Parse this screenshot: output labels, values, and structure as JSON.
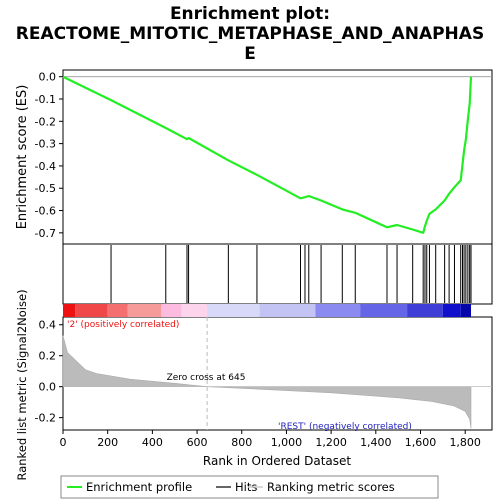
{
  "chart_data": {
    "type": "line",
    "title_line1": "Enrichment plot:",
    "title_line2": "REACTOME_MITOTIC_METAPHASE_AND_ANAPHAS",
    "title_line3": "E",
    "ylabel_top": "Enrichment score (ES)",
    "ylabel_bottom": "Ranked list metric (Signal2Noise)",
    "xlabel": "Rank in Ordered Dataset",
    "x_ticks": [
      0,
      200,
      400,
      600,
      800,
      1000,
      1200,
      1400,
      1600,
      1800
    ],
    "x_tick_labels": [
      "0",
      "200",
      "400",
      "600",
      "800",
      "1,000",
      "1,200",
      "1,400",
      "1,600",
      "1,800"
    ],
    "xlim": [
      0,
      1920
    ],
    "es_ylim": [
      -0.75,
      0.03
    ],
    "es_ticks": [
      0.0,
      -0.1,
      -0.2,
      -0.3,
      -0.4,
      -0.5,
      -0.6,
      -0.7
    ],
    "es_tick_labels": [
      "0.0",
      "-0.1",
      "-0.2",
      "-0.3",
      "-0.4",
      "-0.5",
      "-0.6",
      "-0.7"
    ],
    "metric_ylim": [
      -0.28,
      0.45
    ],
    "metric_ticks": [
      0.4,
      0.2,
      0.0,
      -0.2
    ],
    "metric_tick_labels": [
      "0.4",
      "0.2",
      "0.0",
      "-0.2"
    ],
    "zero_cross_label": "Zero cross at 645",
    "zero_cross_rank": 645,
    "pos_label": "'2' (positively correlated)",
    "neg_label": "'REST' (negatively correlated)",
    "hits": [
      215,
      460,
      555,
      562,
      740,
      868,
      1063,
      1083,
      1100,
      1155,
      1250,
      1308,
      1450,
      1495,
      1565,
      1612,
      1620,
      1628,
      1640,
      1668,
      1708,
      1728,
      1752,
      1780,
      1788,
      1795,
      1803,
      1812,
      1820,
      1826
    ],
    "es_points": [
      [
        0,
        0.0
      ],
      [
        215,
        -0.105
      ],
      [
        460,
        -0.23
      ],
      [
        555,
        -0.28
      ],
      [
        562,
        -0.275
      ],
      [
        740,
        -0.375
      ],
      [
        868,
        -0.44
      ],
      [
        1063,
        -0.545
      ],
      [
        1083,
        -0.54
      ],
      [
        1100,
        -0.535
      ],
      [
        1155,
        -0.555
      ],
      [
        1250,
        -0.595
      ],
      [
        1308,
        -0.61
      ],
      [
        1450,
        -0.675
      ],
      [
        1495,
        -0.665
      ],
      [
        1565,
        -0.685
      ],
      [
        1612,
        -0.7
      ],
      [
        1620,
        -0.67
      ],
      [
        1628,
        -0.645
      ],
      [
        1640,
        -0.615
      ],
      [
        1668,
        -0.595
      ],
      [
        1708,
        -0.555
      ],
      [
        1728,
        -0.525
      ],
      [
        1752,
        -0.495
      ],
      [
        1780,
        -0.465
      ],
      [
        1788,
        -0.395
      ],
      [
        1795,
        -0.33
      ],
      [
        1803,
        -0.28
      ],
      [
        1812,
        -0.19
      ],
      [
        1820,
        -0.12
      ],
      [
        1826,
        0.0
      ]
    ],
    "metric_curve": [
      [
        0,
        0.33
      ],
      [
        20,
        0.22
      ],
      [
        60,
        0.165
      ],
      [
        100,
        0.11
      ],
      [
        150,
        0.085
      ],
      [
        300,
        0.048
      ],
      [
        500,
        0.022
      ],
      [
        645,
        0.0
      ],
      [
        900,
        -0.018
      ],
      [
        1200,
        -0.04
      ],
      [
        1500,
        -0.072
      ],
      [
        1650,
        -0.095
      ],
      [
        1750,
        -0.125
      ],
      [
        1800,
        -0.16
      ],
      [
        1820,
        -0.21
      ],
      [
        1826,
        -0.27
      ]
    ],
    "colorbar_segments": [
      {
        "from": 0,
        "to": 55,
        "color": "#ee1111"
      },
      {
        "from": 55,
        "to": 200,
        "color": "#f04848"
      },
      {
        "from": 200,
        "to": 290,
        "color": "#f47070"
      },
      {
        "from": 290,
        "to": 440,
        "color": "#f79a9a"
      },
      {
        "from": 440,
        "to": 530,
        "color": "#fbbce0"
      },
      {
        "from": 530,
        "to": 645,
        "color": "#fcd4ec"
      },
      {
        "from": 645,
        "to": 880,
        "color": "#d8d8f8"
      },
      {
        "from": 880,
        "to": 1130,
        "color": "#c4c4f4"
      },
      {
        "from": 1130,
        "to": 1330,
        "color": "#8a8af0"
      },
      {
        "from": 1330,
        "to": 1540,
        "color": "#6565e8"
      },
      {
        "from": 1540,
        "to": 1700,
        "color": "#3f3fd8"
      },
      {
        "from": 1700,
        "to": 1780,
        "color": "#1111cc"
      },
      {
        "from": 1780,
        "to": 1826,
        "color": "#0606aa"
      }
    ],
    "colors": {
      "es_line": "#22ee22",
      "hit": "#000000",
      "metric_fill": "#bbbbbb",
      "pos_label": "#ee1111",
      "neg_label": "#2222bb",
      "zero_line": "#bbbbbb"
    },
    "legend": [
      {
        "label": "Enrichment profile",
        "color": "#22ee22"
      },
      {
        "label": "Hits",
        "color": "#000000"
      },
      {
        "label": "Ranking metric scores",
        "color": "#cccccc"
      }
    ]
  }
}
